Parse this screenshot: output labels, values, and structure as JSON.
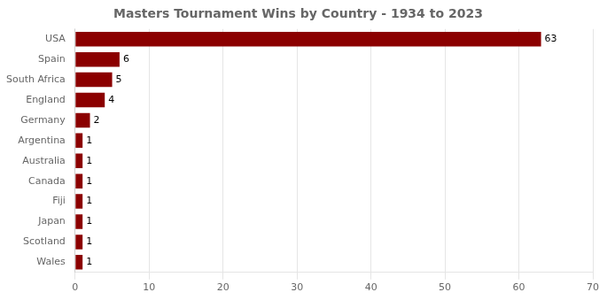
{
  "chart_data": {
    "type": "bar",
    "orientation": "horizontal",
    "title": "Masters Tournament Wins by Country - 1934 to 2023",
    "categories": [
      "Wales",
      "Scotland",
      "Japan",
      "Fiji",
      "Canada",
      "Australia",
      "Argentina",
      "Germany",
      "England",
      "South Africa",
      "Spain",
      "USA"
    ],
    "values": [
      1,
      1,
      1,
      1,
      1,
      1,
      1,
      2,
      4,
      5,
      6,
      63
    ],
    "color": "#8B0000",
    "xlim": [
      0,
      70
    ],
    "xticks": [
      0,
      10,
      20,
      30,
      40,
      50,
      60,
      70
    ],
    "grid": true,
    "data_labels": true
  }
}
